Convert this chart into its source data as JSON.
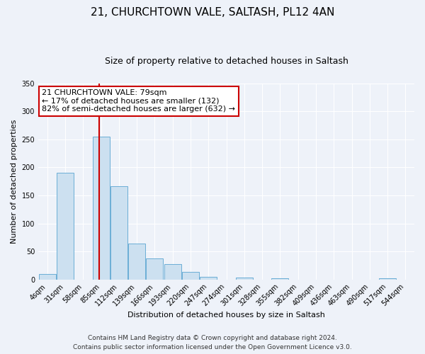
{
  "title1": "21, CHURCHTOWN VALE, SALTASH, PL12 4AN",
  "title2": "Size of property relative to detached houses in Saltash",
  "xlabel": "Distribution of detached houses by size in Saltash",
  "ylabel": "Number of detached properties",
  "bar_labels": [
    "4sqm",
    "31sqm",
    "58sqm",
    "85sqm",
    "112sqm",
    "139sqm",
    "166sqm",
    "193sqm",
    "220sqm",
    "247sqm",
    "274sqm",
    "301sqm",
    "328sqm",
    "355sqm",
    "382sqm",
    "409sqm",
    "436sqm",
    "463sqm",
    "490sqm",
    "517sqm",
    "544sqm"
  ],
  "bar_values": [
    10,
    191,
    0,
    255,
    167,
    64,
    37,
    28,
    13,
    5,
    0,
    3,
    0,
    2,
    0,
    0,
    0,
    0,
    0,
    2,
    0
  ],
  "bar_color": "#cce0f0",
  "bar_edge_color": "#6baed6",
  "vline_color": "#cc0000",
  "annotation_text": "21 CHURCHTOWN VALE: 79sqm\n← 17% of detached houses are smaller (132)\n82% of semi-detached houses are larger (632) →",
  "annotation_box_facecolor": "#ffffff",
  "annotation_box_edgecolor": "#cc0000",
  "ylim": [
    0,
    350
  ],
  "yticks": [
    0,
    50,
    100,
    150,
    200,
    250,
    300,
    350
  ],
  "footer1": "Contains HM Land Registry data © Crown copyright and database right 2024.",
  "footer2": "Contains public sector information licensed under the Open Government Licence v3.0.",
  "bg_color": "#eef2f9",
  "title1_fontsize": 11,
  "title2_fontsize": 9,
  "axis_label_fontsize": 8,
  "tick_fontsize": 7,
  "annotation_fontsize": 8,
  "footer_fontsize": 6.5
}
